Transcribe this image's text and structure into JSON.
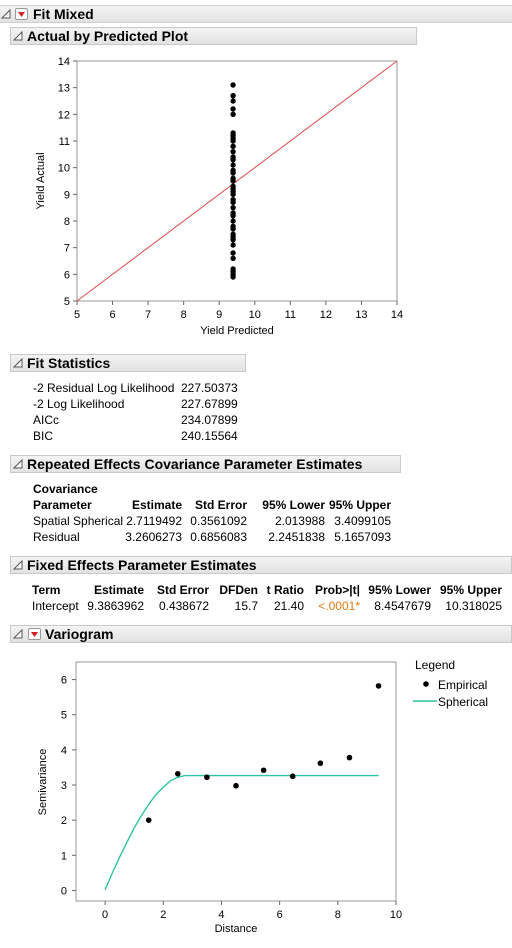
{
  "report": {
    "title": "Fit Mixed",
    "sections": {
      "actual_by_predicted": "Actual by Predicted Plot",
      "fit_statistics": "Fit Statistics",
      "repeated_effects": "Repeated Effects Covariance Parameter Estimates",
      "fixed_effects": "Fixed Effects Parameter Estimates",
      "variogram": "Variogram"
    }
  },
  "fit_statistics": {
    "rows": [
      {
        "label": "-2 Residual Log Likelihood",
        "value": "227.50373"
      },
      {
        "label": "-2 Log Likelihood",
        "value": "227.67899"
      },
      {
        "label": "AICc",
        "value": "234.07899"
      },
      {
        "label": "BIC",
        "value": "240.15564"
      }
    ]
  },
  "repeated_effects": {
    "header_top": "Covariance",
    "headers": [
      "Parameter",
      "Estimate",
      "Std Error",
      "95% Lower",
      "95% Upper"
    ],
    "rows": [
      [
        "Spatial Spherical",
        "2.7119492",
        "0.3561092",
        "2.013988",
        "3.4099105"
      ],
      [
        "Residual",
        "3.2606273",
        "0.6856083",
        "2.2451838",
        "5.1657093"
      ]
    ]
  },
  "fixed_effects": {
    "headers": [
      "Term",
      "Estimate",
      "Std Error",
      "DFDen",
      "t Ratio",
      "Prob>|t|",
      "95% Lower",
      "95% Upper"
    ],
    "rows": [
      [
        "Intercept",
        "9.3863962",
        "0.438672",
        "15.7",
        "21.40",
        "<.0001*",
        "8.4547679",
        "10.318025"
      ]
    ],
    "pvalue_color": "#e07a10"
  },
  "colors": {
    "diagonal_line": "#e34a4a",
    "spherical_line": "#2ec4a0",
    "points": "#000000"
  },
  "chart_data": [
    {
      "type": "scatter",
      "xlabel": "Yield Predicted",
      "ylabel": "Yield Actual",
      "xlim": [
        5,
        14
      ],
      "ylim": [
        5,
        14
      ],
      "xticks": [
        5,
        6,
        7,
        8,
        9,
        10,
        11,
        12,
        13,
        14
      ],
      "yticks": [
        5,
        6,
        7,
        8,
        9,
        10,
        11,
        12,
        13,
        14
      ],
      "reference_line": {
        "from": [
          5,
          5
        ],
        "to": [
          14,
          14
        ]
      },
      "x": 9.39,
      "y": [
        13.1,
        12.7,
        12.5,
        12.2,
        12.0,
        11.3,
        11.2,
        11.1,
        11.0,
        10.8,
        10.6,
        10.4,
        10.3,
        10.1,
        9.9,
        9.8,
        9.6,
        9.5,
        9.3,
        9.2,
        9.1,
        9.0,
        8.8,
        8.7,
        8.5,
        8.3,
        8.2,
        8.0,
        7.8,
        7.7,
        7.5,
        7.4,
        7.3,
        7.1,
        6.8,
        6.6,
        6.2,
        6.1,
        6.0,
        5.9
      ]
    },
    {
      "type": "scatter",
      "xlabel": "Distance",
      "ylabel": "Semivariance",
      "xlim": [
        -1,
        10
      ],
      "ylim": [
        -0.3,
        6.5
      ],
      "xticks": [
        0,
        2,
        4,
        6,
        8,
        10
      ],
      "yticks": [
        0,
        1,
        2,
        3,
        4,
        5,
        6
      ],
      "legend": {
        "title": "Legend",
        "placement": "right",
        "entries": [
          "Empirical",
          "Spherical"
        ]
      },
      "series": [
        {
          "name": "Empirical",
          "type": "scatter",
          "x": [
            1.5,
            2.5,
            3.5,
            4.5,
            5.45,
            6.45,
            7.4,
            8.4,
            9.4
          ],
          "y": [
            2.0,
            3.32,
            3.22,
            2.98,
            3.42,
            3.25,
            3.62,
            3.78,
            5.82
          ]
        },
        {
          "name": "Spherical",
          "type": "line",
          "x": [
            0,
            0.25,
            0.5,
            0.75,
            1.0,
            1.25,
            1.5,
            1.75,
            2.0,
            2.25,
            2.5,
            2.75,
            3.0,
            9.4
          ],
          "y": [
            0.02,
            0.5,
            0.95,
            1.37,
            1.78,
            2.13,
            2.45,
            2.73,
            2.94,
            3.12,
            3.22,
            3.27,
            3.27,
            3.27
          ]
        }
      ]
    }
  ]
}
